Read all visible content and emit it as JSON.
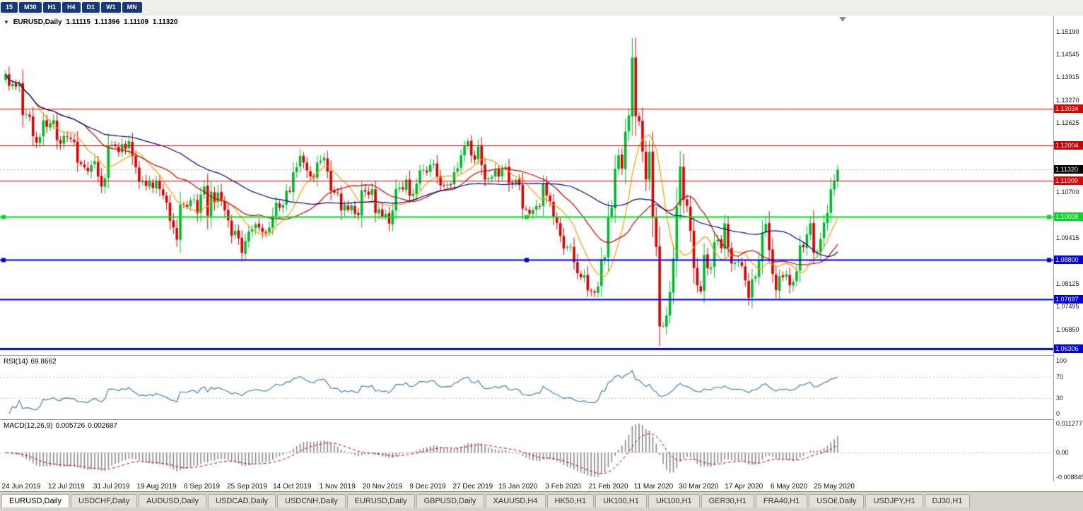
{
  "ui": {
    "toolbar": {
      "timeframes": [
        "15",
        "M30",
        "H1",
        "H4",
        "D1",
        "W1",
        "MN"
      ]
    },
    "tabs": {
      "active_index": 0,
      "items": [
        "EURUSD,Daily",
        "USDCHF,Daily",
        "AUDUSD,Daily",
        "USDCAD,Daily",
        "USDCNH,Daily",
        "EURUSD,Daily",
        "GBPUSD,Daily",
        "XAUUSD,H4",
        "HK50,H1",
        "UK100,H1",
        "UK100,H1",
        "GER30,H1",
        "FRA40,H1",
        "USOil,Daily",
        "USDJPY,H1",
        "DJ30,H1"
      ]
    }
  },
  "chart_data": {
    "type": "candlestick",
    "title": {
      "symbol": "EURUSD,Daily",
      "open": "1.11115",
      "high": "1.11396",
      "low": "1.11109",
      "close": "1.11320"
    },
    "colors": {
      "up": "#00b92e",
      "down": "#dd0000",
      "current_line": "#aaaaaa"
    },
    "price_axis": {
      "min": 1.0613,
      "max": 1.1564,
      "ticks": [
        {
          "value": 1.1519,
          "label": "1.15190"
        },
        {
          "value": 1.14545,
          "label": "1.14545"
        },
        {
          "value": 1.13915,
          "label": "1.13915"
        },
        {
          "value": 1.1327,
          "label": "1.13270"
        },
        {
          "value": 1.12625,
          "label": "1.12625"
        },
        {
          "value": 1.107,
          "label": "1.10700"
        },
        {
          "value": 1.09415,
          "label": "1.09415"
        },
        {
          "value": 1.08125,
          "label": "1.08125"
        },
        {
          "value": 1.07495,
          "label": "1.07495"
        },
        {
          "value": 1.0685,
          "label": "1.06850"
        }
      ]
    },
    "current_price": {
      "value": 1.1132,
      "label": "1.11320",
      "color": "#000000"
    },
    "hlines": [
      {
        "value": 1.13034,
        "label": "1.13034",
        "color": "#dd0000",
        "width": 1,
        "handles": false
      },
      {
        "value": 1.12004,
        "label": "1.12004",
        "color": "#cc0000",
        "width": 1,
        "handles": false
      },
      {
        "value": 1.11009,
        "label": "1.11009",
        "color": "#dd0000",
        "width": 1,
        "handles": false
      },
      {
        "value": 1.10008,
        "label": "1.10008",
        "color": "#00dd22",
        "width": 2,
        "handles": true
      },
      {
        "value": 1.088,
        "label": "1.08800",
        "color": "#0000dd",
        "width": 2,
        "handles": true
      },
      {
        "value": 1.07697,
        "label": "1.07697",
        "color": "#0000dd",
        "width": 2,
        "handles": false
      },
      {
        "value": 1.06306,
        "label": "1.06306",
        "color": "#0000dd",
        "width": 3,
        "handles": false
      }
    ],
    "moving_averages": [
      {
        "period": 10,
        "color": "#ff9900"
      },
      {
        "period": 24,
        "color": "#cc0000"
      },
      {
        "period": 52,
        "color": "#000080"
      }
    ],
    "dates": [
      "24 Jun 2019",
      "12 Jul 2019",
      "31 Jul 2019",
      "19 Aug 2019",
      "6 Sep 2019",
      "25 Sep 2019",
      "14 Oct 2019",
      "1 Nov 2019",
      "20 Nov 2019",
      "9 Dec 2019",
      "27 Dec 2019",
      "15 Jan 2020",
      "3 Feb 2020",
      "21 Feb 2020",
      "11 Mar 2020",
      "30 Mar 2020",
      "17 Apr 2020",
      "6 May 2020",
      "25 May 2020"
    ],
    "closes": [
      1.14,
      1.1367,
      1.1372,
      1.1365,
      1.1373,
      1.1285,
      1.1288,
      1.128,
      1.1226,
      1.1208,
      1.1224,
      1.127,
      1.1252,
      1.1262,
      1.1271,
      1.1215,
      1.1205,
      1.1227,
      1.1224,
      1.1218,
      1.121,
      1.1152,
      1.1148,
      1.1139,
      1.1128,
      1.1145,
      1.1156,
      1.1113,
      1.1085,
      1.1108,
      1.12,
      1.1203,
      1.1198,
      1.1181,
      1.1203,
      1.119,
      1.1212,
      1.117,
      1.1139,
      1.1098,
      1.11,
      1.1087,
      1.1099,
      1.1081,
      1.11,
      1.1078,
      1.106,
      1.104,
      1.0989,
      1.097,
      1.0936,
      1.1034,
      1.1033,
      1.1028,
      1.1046,
      1.1049,
      1.101,
      1.1062,
      1.1085,
      1.1003,
      1.1071,
      1.104,
      1.1068,
      1.1044,
      1.1018,
      1.099,
      1.0947,
      1.0961,
      1.094,
      1.0899,
      1.0932,
      1.0959,
      1.0966,
      1.0979,
      1.097,
      1.0958,
      1.0955,
      1.097,
      1.1002,
      1.104,
      1.1026,
      1.1033,
      1.1073,
      1.107,
      1.1125,
      1.1139,
      1.1171,
      1.1152,
      1.113,
      1.1113,
      1.111,
      1.1152,
      1.1157,
      1.1166,
      1.1127,
      1.1073,
      1.1068,
      1.1067,
      1.1018,
      1.1034,
      1.1019,
      1.1032,
      1.1009,
      1.1005,
      1.1074,
      1.1071,
      1.1062,
      1.1078,
      1.1011,
      1.1021,
      1.1001,
      1.1008,
      1.0981,
      1.1018,
      1.1078,
      1.1082,
      1.1077,
      1.1104,
      1.1059,
      1.1065,
      1.1093,
      1.113,
      1.1132,
      1.1124,
      1.1145,
      1.1149,
      1.1113,
      1.1088,
      1.1087,
      1.1091,
      1.1089,
      1.1125,
      1.1136,
      1.1172,
      1.1199,
      1.1212,
      1.1172,
      1.116,
      1.1197,
      1.1145,
      1.1104,
      1.1108,
      1.1112,
      1.1132,
      1.1113,
      1.1134,
      1.1139,
      1.1095,
      1.1092,
      1.1103,
      1.1089,
      1.1023,
      1.1022,
      1.1009,
      1.1019,
      1.1031,
      1.1029,
      1.1093,
      1.106,
      1.1043,
      1.1001,
      1.0983,
      1.0946,
      1.0911,
      1.0915,
      1.0917,
      1.0873,
      1.0842,
      1.0831,
      1.0836,
      1.0794,
      1.0792,
      1.0788,
      1.0805,
      1.0881,
      1.0887,
      1.0999,
      1.1026,
      1.1135,
      1.1173,
      1.1136,
      1.1239,
      1.1284,
      1.1446,
      1.1282,
      1.1268,
      1.1183,
      1.1105,
      1.1182,
      1.0998,
      1.0916,
      1.0693,
      1.0695,
      1.0724,
      1.0789,
      1.0883,
      1.1029,
      1.1141,
      1.1048,
      1.1031,
      1.0961,
      1.0857,
      1.0808,
      1.0791,
      1.0893,
      1.0856,
      1.0858,
      1.0929,
      1.0936,
      1.0912,
      1.0982,
      1.0914,
      1.0869,
      1.0872,
      1.0875,
      1.0863,
      1.0822,
      1.0773,
      1.0825,
      1.0833,
      1.0877,
      1.0956,
      1.098,
      1.0907,
      1.084,
      1.0795,
      1.0834,
      1.0831,
      1.0839,
      1.0808,
      1.0818,
      1.0847,
      1.092,
      1.0915,
      1.0951,
      1.0982,
      1.0899,
      1.0902,
      1.0938,
      1.0984,
      1.1011,
      1.1077,
      1.1101,
      1.1132
    ],
    "rsi": {
      "label": "RSI(14)",
      "value": "69.8662",
      "period": 14,
      "color": "#4682b4",
      "levels": [
        {
          "value": 100,
          "label": "100"
        },
        {
          "value": 70,
          "label": "70"
        },
        {
          "value": 30,
          "label": "30"
        },
        {
          "value": 0,
          "label": "0"
        }
      ]
    },
    "macd": {
      "label": "MACD(12,26,9)",
      "value_main": "0.005726",
      "value_signal": "0.002687",
      "fast": 12,
      "slow": 26,
      "signal": 9,
      "hist_color": "#8a8a8a",
      "signal_color": "#cc0000",
      "axis": {
        "top": "0.011277",
        "zero": "0.00",
        "bottom": "-0.008845"
      }
    }
  }
}
